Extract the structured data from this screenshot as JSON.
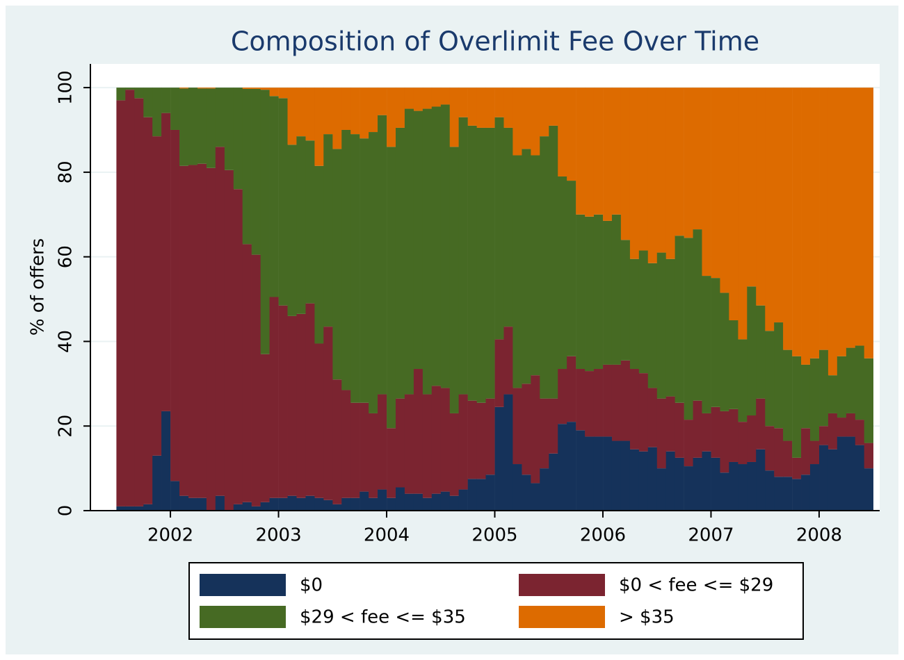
{
  "chart_data": {
    "type": "stacked-bar",
    "title": "Composition of Overlimit Fee Over Time",
    "y_label": "% of offers",
    "x": [
      2001.542,
      2001.625,
      2001.708,
      2001.792,
      2001.875,
      2001.958,
      2002.042,
      2002.125,
      2002.208,
      2002.292,
      2002.375,
      2002.458,
      2002.542,
      2002.625,
      2002.708,
      2002.792,
      2002.875,
      2002.958,
      2003.042,
      2003.125,
      2003.208,
      2003.292,
      2003.375,
      2003.458,
      2003.542,
      2003.625,
      2003.708,
      2003.792,
      2003.875,
      2003.958,
      2004.042,
      2004.125,
      2004.208,
      2004.292,
      2004.375,
      2004.458,
      2004.542,
      2004.625,
      2004.708,
      2004.792,
      2004.875,
      2004.958,
      2005.042,
      2005.125,
      2005.208,
      2005.292,
      2005.375,
      2005.458,
      2005.542,
      2005.625,
      2005.708,
      2005.792,
      2005.875,
      2005.958,
      2006.042,
      2006.125,
      2006.208,
      2006.292,
      2006.375,
      2006.458,
      2006.542,
      2006.625,
      2006.708,
      2006.792,
      2006.875,
      2006.958,
      2007.042,
      2007.125,
      2007.208,
      2007.292,
      2007.375,
      2007.458,
      2007.542,
      2007.625,
      2007.708,
      2007.792,
      2007.875,
      2007.958,
      2008.042,
      2008.125,
      2008.208,
      2008.292,
      2008.375,
      2008.458
    ],
    "series": [
      {
        "name": "$0",
        "color": "#15325a",
        "values": [
          1,
          1,
          1,
          1.5,
          13,
          23.5,
          7,
          3.5,
          3,
          3,
          0,
          3.5,
          0,
          1.5,
          2,
          1,
          2,
          3,
          3,
          3.5,
          3,
          3.5,
          3,
          2.5,
          1.5,
          3,
          3,
          4.5,
          3,
          5,
          3,
          5.5,
          4,
          4,
          3,
          4,
          4.5,
          3.5,
          5,
          7.5,
          7.5,
          8.5,
          24.5,
          27.5,
          11,
          8.5,
          6.5,
          10,
          13.5,
          20.5,
          21,
          19,
          17.5,
          17.5,
          17.5,
          16.5,
          16.5,
          14.5,
          14,
          15,
          10,
          14,
          12.5,
          10.5,
          12.5,
          14,
          12.5,
          9,
          11.5,
          11,
          11.5,
          14.5,
          9.5,
          8,
          8,
          7.5,
          8.5,
          11,
          15.5,
          14.5,
          17.5,
          17.5,
          15.5,
          10
        ]
      },
      {
        "name": "$0 < fee <= $29",
        "color": "#7b2430",
        "values": [
          96,
          98.5,
          96.5,
          91.5,
          75.5,
          70.5,
          83,
          78,
          78.7,
          79,
          81,
          82.5,
          80.5,
          74.5,
          61,
          59.5,
          35,
          47.5,
          45.5,
          42.5,
          43.5,
          45.5,
          36.5,
          41,
          29.5,
          25.5,
          22.5,
          21,
          20,
          22.5,
          16.5,
          21,
          23.5,
          29.5,
          24.5,
          25.5,
          24.5,
          19.5,
          22.5,
          18.5,
          18,
          18,
          16,
          16,
          18,
          21.5,
          25.5,
          16.5,
          13,
          13,
          15.5,
          14.5,
          15.5,
          16,
          17,
          18,
          19,
          19,
          18.5,
          14,
          16.5,
          13,
          13,
          11,
          13.5,
          9,
          12,
          14.5,
          12.5,
          10,
          11,
          12,
          10.5,
          11.5,
          8.5,
          5,
          11,
          5.5,
          4.5,
          8.5,
          4.5,
          5.5,
          6,
          6
        ]
      },
      {
        "name": "$29 < fee <= $35",
        "color": "#466a23",
        "values": [
          3,
          0.5,
          2.5,
          7,
          11.5,
          6,
          10,
          18.3,
          18.3,
          17.8,
          18.8,
          14,
          19.5,
          24,
          36.7,
          39.2,
          62.5,
          47.5,
          49,
          40.5,
          42,
          38.5,
          42,
          45.5,
          54.5,
          61.5,
          63.5,
          62.5,
          66.5,
          66,
          66.5,
          64,
          67.5,
          61,
          67.5,
          66,
          67,
          63,
          65.5,
          65,
          65,
          64,
          52.5,
          47,
          55,
          55.5,
          52,
          62,
          64.5,
          45.5,
          41.5,
          36.5,
          36.5,
          36.5,
          34,
          35.5,
          28.5,
          26,
          29,
          29.5,
          34.5,
          32.5,
          39.5,
          43,
          40.5,
          32.5,
          30.5,
          28,
          21,
          19.5,
          30.5,
          22,
          22.5,
          25,
          21.5,
          24,
          15,
          19.5,
          18,
          9,
          14.5,
          15.5,
          17.5,
          20
        ]
      },
      {
        "name": "> $35",
        "color": "#dd6b00",
        "values": [
          0,
          0,
          0,
          0,
          0,
          0,
          0,
          0.2,
          0,
          0.2,
          0.2,
          0,
          0,
          0,
          0.3,
          0.3,
          0.5,
          2,
          2.5,
          13.5,
          11.5,
          12.5,
          18.5,
          11,
          14.5,
          10,
          11,
          12,
          10.5,
          6.5,
          14,
          9.5,
          5,
          5.5,
          5,
          4.5,
          4,
          14,
          7,
          9,
          9.5,
          9.5,
          7,
          9.5,
          16,
          14.5,
          16,
          11.5,
          9,
          21,
          22,
          30,
          30.5,
          30,
          31.5,
          30,
          36,
          40.5,
          38.5,
          41.5,
          39,
          40.5,
          35,
          35.5,
          33.5,
          44.5,
          45,
          48.5,
          55,
          59.5,
          47,
          51.5,
          57.5,
          55.5,
          62,
          63.5,
          65.5,
          64,
          62,
          68,
          63.5,
          61.5,
          61,
          64
        ]
      }
    ],
    "xlim": [
      2001.26,
      2008.56
    ],
    "xticks": [
      2002,
      2003,
      2004,
      2005,
      2006,
      2007,
      2008
    ],
    "ylim": [
      0,
      105.6
    ],
    "yticks": [
      0,
      20,
      40,
      60,
      80,
      100
    ],
    "grid": true
  }
}
